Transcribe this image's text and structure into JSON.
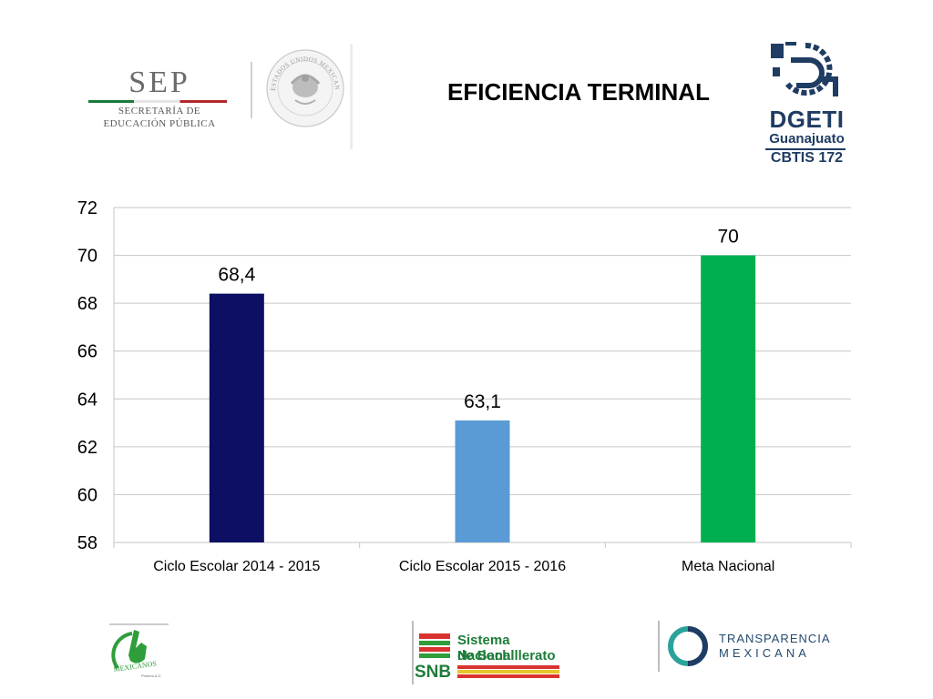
{
  "header": {
    "title": "EFICIENCIA TERMINAL",
    "sep_logo": {
      "acronym": "SEP",
      "line1": "SECRETARÍA DE",
      "line2": "EDUCACIÓN PÚBLICA"
    },
    "seal_text": "ESTADOS UNIDOS MEXICANOS",
    "dgeti_logo": {
      "name": "DGETI",
      "state": "Guanajuato",
      "school": "CBTIS 172",
      "color": "#1f3c63"
    }
  },
  "chart_data": {
    "type": "bar",
    "categories": [
      "Ciclo Escolar 2014 - 2015",
      "Ciclo Escolar 2015 - 2016",
      "Meta Nacional"
    ],
    "values": [
      68.4,
      63.1,
      70
    ],
    "data_labels": [
      "68,4",
      "63,1",
      "70"
    ],
    "colors": [
      "#0d0f63",
      "#5b9bd5",
      "#00b050"
    ],
    "ylim": [
      58,
      72
    ],
    "yticks": [
      58,
      60,
      62,
      64,
      66,
      68,
      70,
      72
    ],
    "grid": true,
    "legend": "none",
    "title": "",
    "xlabel": "",
    "ylabel": ""
  },
  "footer": {
    "mexicanos_logo": {
      "text": "MEXICANOS",
      "subtext": "Primero A.C."
    },
    "snb_logo": {
      "line1": "Sistema Nacional",
      "line2": "de Bachillerato",
      "abbr": "SNB"
    },
    "transparencia_logo": {
      "line1": "TRANSPARENCIA",
      "line2": "MEXICANA"
    }
  }
}
